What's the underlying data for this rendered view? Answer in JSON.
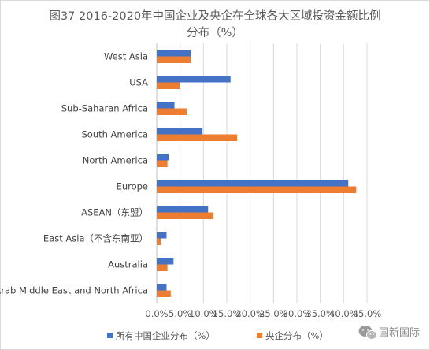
{
  "chart_data": {
    "type": "bar",
    "orientation": "horizontal",
    "title_line1": "图37 2016-2020年中国企业及央企在全球各大区域投资金额比例",
    "title_line2": "分布（%）",
    "categories": [
      "West Asia",
      "USA",
      "Sub-Saharan Africa",
      "South America",
      "North America",
      "Europe",
      "ASEAN（东盟）",
      "East Asia（不含东南亚）",
      "Australia",
      "Arab Middle East and North Africa"
    ],
    "series": [
      {
        "name": "所有中国企业分布（%）",
        "color": "#4472C4",
        "values": [
          7.3,
          15.8,
          3.8,
          9.8,
          2.6,
          41.0,
          11.0,
          2.1,
          3.6,
          2.1
        ]
      },
      {
        "name": "央企分布（%）",
        "color": "#ED7D31",
        "values": [
          7.3,
          4.9,
          6.4,
          17.2,
          2.3,
          42.7,
          12.1,
          0.9,
          2.3,
          3.0
        ]
      }
    ],
    "xlim": [
      0,
      45
    ],
    "xticks": [
      "0.0%",
      "5.0%",
      "10.0%",
      "15.0%",
      "20.0%",
      "25.0%",
      "30.0%",
      "35.0%",
      "40.0%",
      "45.0%"
    ],
    "grid": true,
    "legend_position": "bottom"
  },
  "watermark": {
    "label": "国新国际"
  }
}
